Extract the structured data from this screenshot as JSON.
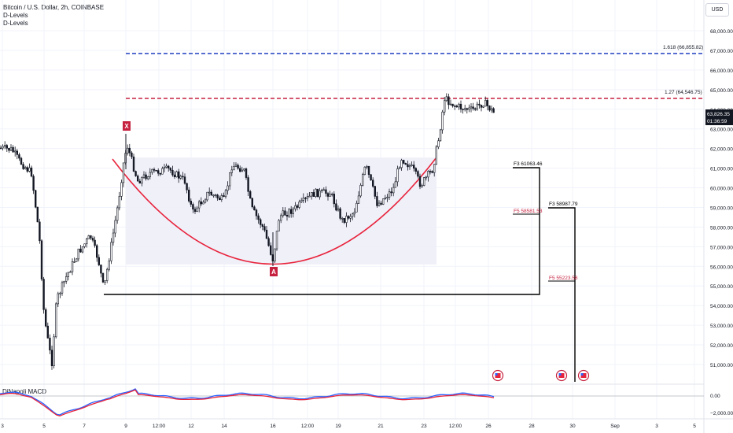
{
  "header": {
    "symbol": "Bitcoin / U.S. Dollar, 2h, COINBASE",
    "indicators": [
      "D-Levels",
      "D-Levels"
    ]
  },
  "currency_button": "USD",
  "price_axis": {
    "ticks": [
      "68,000.00",
      "67,000.00",
      "66,000.00",
      "65,000.00",
      "64,000.00",
      "63,000.00",
      "62,000.00",
      "61,000.00",
      "60,000.00",
      "59,000.00",
      "58,000.00",
      "57,000.00",
      "56,000.00",
      "55,000.00",
      "54,000.00",
      "53,000.00",
      "52,000.00",
      "51,000.00"
    ],
    "current_price": "63,826.35",
    "countdown": "01:36:59"
  },
  "time_axis": {
    "labels": [
      "3",
      "5",
      "7",
      "9",
      "12:00",
      "12",
      "14",
      "16",
      "12:00",
      "19",
      "21",
      "23",
      "12:00",
      "26",
      "28",
      "30",
      "Sep",
      "3",
      "5"
    ]
  },
  "levels": {
    "fib_1618": "1.618 (66,855.82)",
    "fib_127": "1.27 (64,546.75)",
    "f3_a": "F3 61063.46",
    "f5_a": "F5 58581.53",
    "f3_b": "F3 58987.79",
    "f5_b": "F5 55223.58"
  },
  "pattern": {
    "point_x": "X",
    "point_a": "A"
  },
  "macd": {
    "label": "DiNapoli MACD",
    "ticks": [
      "0.00",
      "−2,000.00"
    ]
  },
  "colors": {
    "blue_level": "#1e3fbf",
    "red_level": "#c62240",
    "arc": "#e8243c",
    "candle": "#131722",
    "macd_fast": "#2962ff",
    "macd_slow": "#e8243c"
  },
  "chart_data": {
    "type": "candlestick",
    "series": [
      {
        "name": "Bitcoin / U.S. Dollar, 2h, COINBASE",
        "x_labels_visible": [
          "3",
          "5",
          "7",
          "9",
          "12",
          "14",
          "16",
          "19",
          "21",
          "23",
          "26",
          "28",
          "30",
          "Sep",
          "3",
          "5"
        ]
      }
    ],
    "key_points": {
      "X_high": 62700,
      "A_low": 56100,
      "recent_high": 65000,
      "current": 63826.35
    },
    "ylim": [
      50000,
      69000
    ],
    "grid": true
  }
}
